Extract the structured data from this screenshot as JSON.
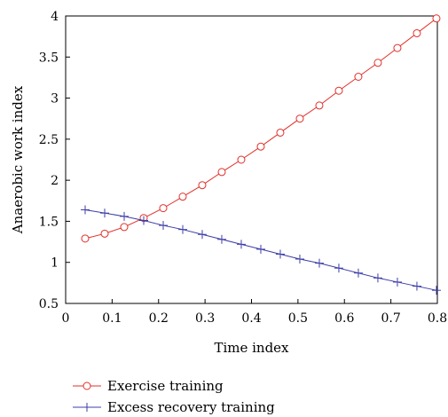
{
  "chart_data": {
    "type": "line",
    "xlabel": "Time index",
    "ylabel": "Anaerobic work index",
    "xlim": [
      0,
      0.8
    ],
    "ylim": [
      0.5,
      4
    ],
    "xticks": [
      "0",
      "0.1",
      "0.2",
      "0.3",
      "0.4",
      "0.5",
      "0.6",
      "0.7",
      "0.8"
    ],
    "yticks": [
      "0.5",
      "1",
      "1.5",
      "2",
      "2.5",
      "3",
      "3.5",
      "4"
    ],
    "grid": false,
    "legend_position": "bottom",
    "series": [
      {
        "name": "Exercise training",
        "color": "#e0302a",
        "marker": "circle",
        "x": [
          0.042,
          0.084,
          0.126,
          0.168,
          0.21,
          0.252,
          0.294,
          0.336,
          0.378,
          0.42,
          0.462,
          0.504,
          0.546,
          0.588,
          0.63,
          0.672,
          0.714,
          0.756,
          0.798
        ],
        "y": [
          1.29,
          1.35,
          1.43,
          1.54,
          1.66,
          1.8,
          1.94,
          2.1,
          2.25,
          2.41,
          2.58,
          2.75,
          2.91,
          3.09,
          3.26,
          3.43,
          3.61,
          3.79,
          3.97
        ]
      },
      {
        "name": "Excess recovery training",
        "color": "#3c3ca8",
        "marker": "plus",
        "x": [
          0.042,
          0.084,
          0.126,
          0.168,
          0.21,
          0.252,
          0.294,
          0.336,
          0.378,
          0.42,
          0.462,
          0.504,
          0.546,
          0.588,
          0.63,
          0.672,
          0.714,
          0.756,
          0.798
        ],
        "y": [
          1.64,
          1.6,
          1.56,
          1.51,
          1.45,
          1.4,
          1.34,
          1.28,
          1.22,
          1.16,
          1.1,
          1.04,
          0.99,
          0.93,
          0.87,
          0.81,
          0.76,
          0.71,
          0.66
        ]
      }
    ]
  }
}
